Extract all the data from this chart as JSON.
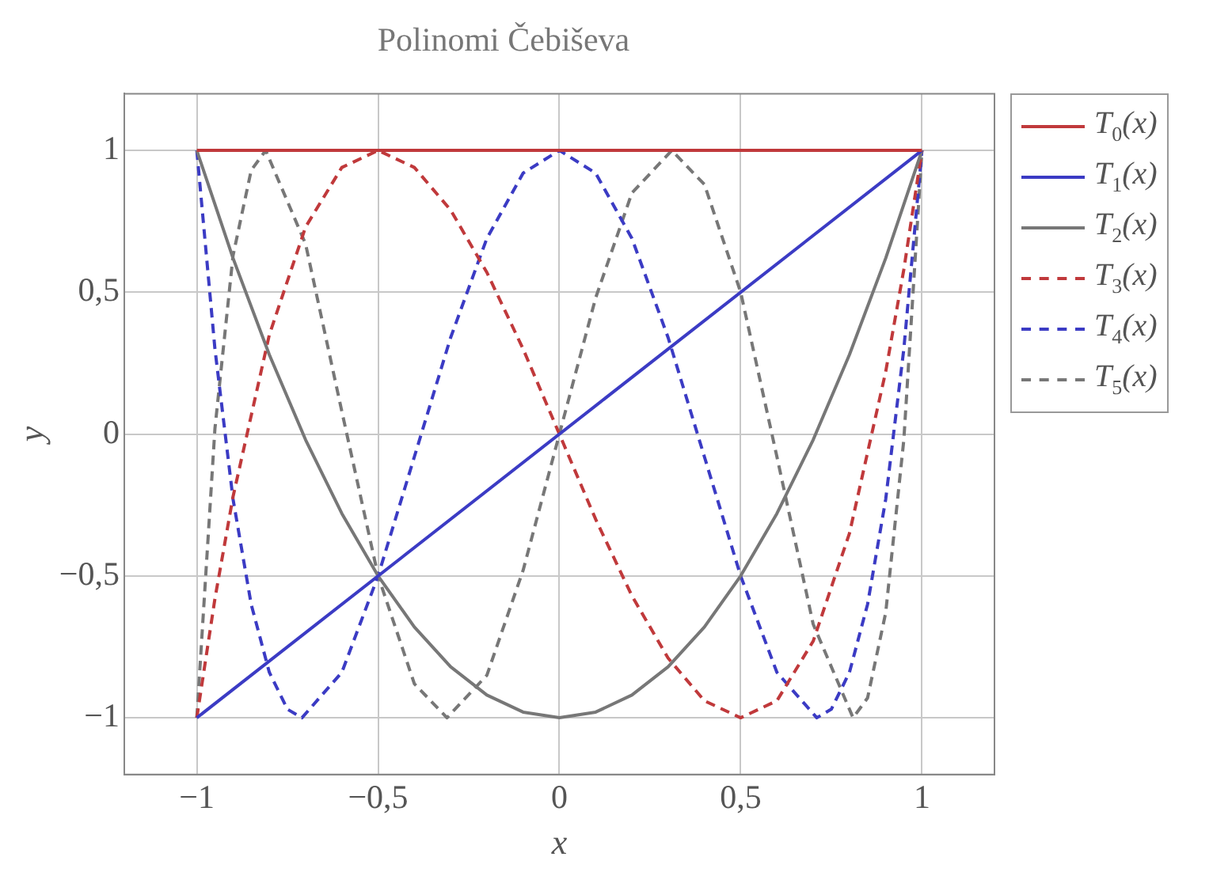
{
  "chart_data": {
    "type": "line",
    "title": "Polinomi Čebiševa",
    "xlabel": "x",
    "ylabel": "y",
    "xlim": [
      -1.2,
      1.2
    ],
    "ylim": [
      -1.2,
      1.2
    ],
    "xticks": [
      {
        "value": -1,
        "label": "−1"
      },
      {
        "value": -0.5,
        "label": "−0,5"
      },
      0,
      {
        "value": 0.5,
        "label": "0,5"
      },
      1
    ],
    "yticks": [
      {
        "value": -1,
        "label": "−1"
      },
      {
        "value": -0.5,
        "label": "−0,5"
      },
      0,
      {
        "value": 0.5,
        "label": "0,5"
      },
      1
    ],
    "grid": true,
    "legend": "top right",
    "marker": "none",
    "series": [
      {
        "name": "T$_{0}$(x)",
        "color": "#c0393b",
        "line_style": "solid",
        "x": [
          -1,
          1
        ],
        "values": [
          1,
          1
        ]
      },
      {
        "name": "T$_{1}$(x)",
        "color": "#3b3bc4",
        "line_style": "solid",
        "x": [
          -1,
          1
        ],
        "values": [
          -1,
          1
        ]
      },
      {
        "name": "T$_{2}$(x)",
        "color": "#777777",
        "line_style": "solid",
        "x": [
          -1,
          -0.9,
          -0.8,
          -0.7,
          -0.6,
          -0.5,
          -0.4,
          -0.3,
          -0.2,
          -0.1,
          0,
          0.1,
          0.2,
          0.3,
          0.4,
          0.5,
          0.6,
          0.7,
          0.8,
          0.9,
          1
        ],
        "values": [
          1,
          0.62,
          0.28,
          -0.02,
          -0.28,
          -0.5,
          -0.68,
          -0.82,
          -0.92,
          -0.98,
          -1,
          -0.98,
          -0.92,
          -0.82,
          -0.68,
          -0.5,
          -0.28,
          -0.02,
          0.28,
          0.62,
          1
        ]
      },
      {
        "name": "T$_{3}$(x)",
        "color": "#c0393b",
        "line_style": "dashed",
        "x": [
          -1,
          -0.95,
          -0.9,
          -0.8,
          -0.7,
          -0.6,
          -0.5,
          -0.4,
          -0.3,
          -0.2,
          -0.1,
          0,
          0.1,
          0.2,
          0.3,
          0.4,
          0.5,
          0.6,
          0.7,
          0.8,
          0.9,
          0.95,
          1
        ],
        "values": [
          -1,
          -0.58,
          -0.22,
          0.35,
          0.73,
          0.94,
          1,
          0.94,
          0.79,
          0.57,
          0.3,
          0,
          -0.3,
          -0.57,
          -0.79,
          -0.94,
          -1,
          -0.94,
          -0.73,
          -0.35,
          0.22,
          0.58,
          1
        ]
      },
      {
        "name": "T$_{4}$(x)",
        "color": "#3b3bc4",
        "line_style": "dashed",
        "x": [
          -1,
          -0.95,
          -0.9,
          -0.85,
          -0.8,
          -0.75,
          -0.71,
          -0.6,
          -0.5,
          -0.4,
          -0.3,
          -0.2,
          -0.1,
          0,
          0.1,
          0.2,
          0.3,
          0.4,
          0.5,
          0.6,
          0.71,
          0.75,
          0.8,
          0.85,
          0.9,
          0.95,
          1
        ],
        "values": [
          1,
          0.3,
          -0.23,
          -0.6,
          -0.84,
          -0.97,
          -1,
          -0.84,
          -0.5,
          -0.08,
          0.34,
          0.69,
          0.92,
          1,
          0.92,
          0.69,
          0.34,
          -0.08,
          -0.5,
          -0.84,
          -1,
          -0.97,
          -0.84,
          -0.6,
          -0.23,
          0.3,
          1
        ]
      },
      {
        "name": "T$_{5}$(x)",
        "color": "#777777",
        "line_style": "dashed",
        "x": [
          -1,
          -0.95,
          -0.9,
          -0.85,
          -0.81,
          -0.7,
          -0.6,
          -0.5,
          -0.4,
          -0.31,
          -0.2,
          -0.1,
          0,
          0.1,
          0.2,
          0.31,
          0.4,
          0.5,
          0.6,
          0.7,
          0.81,
          0.85,
          0.9,
          0.95,
          1
        ],
        "values": [
          -1,
          0.02,
          0.63,
          0.93,
          1,
          0.67,
          0.08,
          -0.5,
          -0.88,
          -1,
          -0.85,
          -0.48,
          0,
          0.48,
          0.85,
          1,
          0.88,
          0.5,
          -0.08,
          -0.67,
          -1,
          -0.93,
          -0.63,
          -0.02,
          1
        ]
      }
    ]
  }
}
